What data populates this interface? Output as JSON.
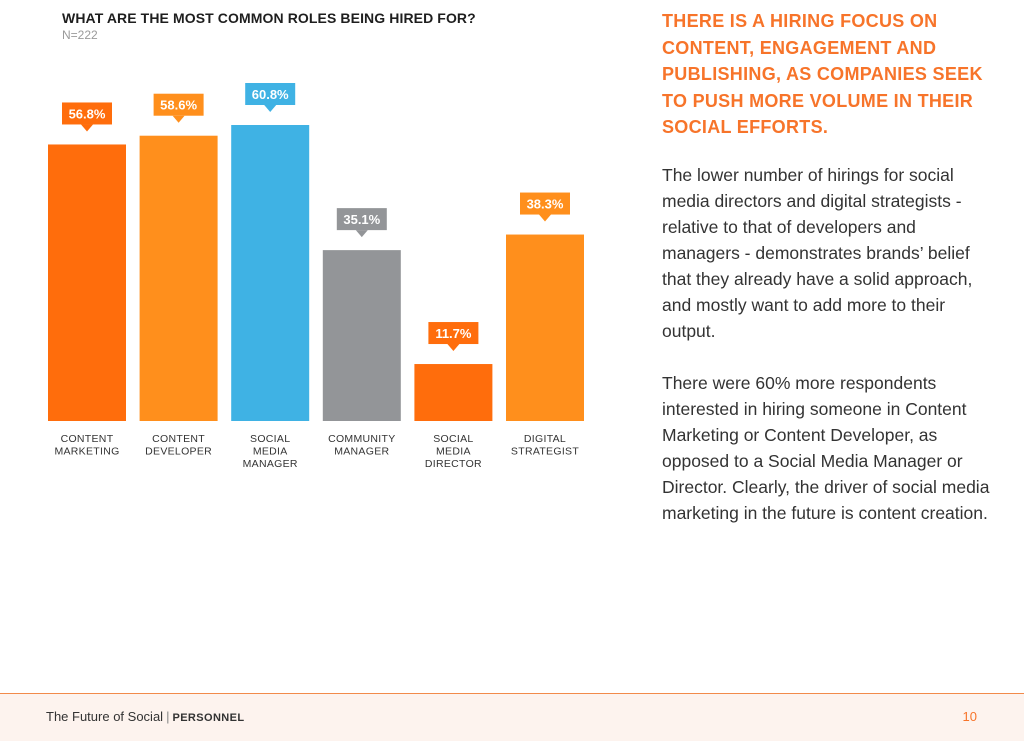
{
  "chart_data": {
    "type": "bar",
    "title": "WHAT ARE THE MOST COMMON ROLES BEING HIRED FOR?",
    "subtitle": "N=222",
    "categories": [
      [
        "CONTENT",
        "MARKETING"
      ],
      [
        "CONTENT",
        "DEVELOPER"
      ],
      [
        "SOCIAL",
        "MEDIA",
        "MANAGER"
      ],
      [
        "COMMUNITY",
        "MANAGER"
      ],
      [
        "SOCIAL",
        "MEDIA",
        "DIRECTOR"
      ],
      [
        "DIGITAL",
        "STRATEGIST"
      ]
    ],
    "values": [
      56.8,
      58.6,
      60.8,
      35.1,
      11.7,
      38.3
    ],
    "value_labels": [
      "56.8%",
      "58.6%",
      "60.8%",
      "35.1%",
      "11.7%",
      "38.3%"
    ],
    "colors": [
      "#ff6d0c",
      "#ff8f1c",
      "#3fb2e4",
      "#939598",
      "#ff6d0c",
      "#ff8f1c"
    ],
    "ylim": [
      0,
      100
    ],
    "grid": false,
    "legend": "none"
  },
  "sidebar": {
    "headline": "THERE IS A HIRING FOCUS ON CONTENT, ENGAGEMENT AND PUBLISHING, AS COMPANIES SEEK TO PUSH MORE VOLUME IN THEIR SOCIAL EFFORTS.",
    "paragraph_1": "The lower number of hirings for social media directors and digital strategists - relative to that of developers and managers - demonstrates brands’ belief that they already have a solid approach, and mostly want to add more to their output.",
    "paragraph_2": "There were 60% more respondents interested in hiring someone in Content Marketing or Content Developer, as opposed to a Social Media Manager or Director. Clearly, the driver of social media marketing in the future is content creation."
  },
  "footer": {
    "publication": "The Future of Social",
    "separator": "|",
    "section": "PERSONNEL",
    "page_number": "10"
  }
}
